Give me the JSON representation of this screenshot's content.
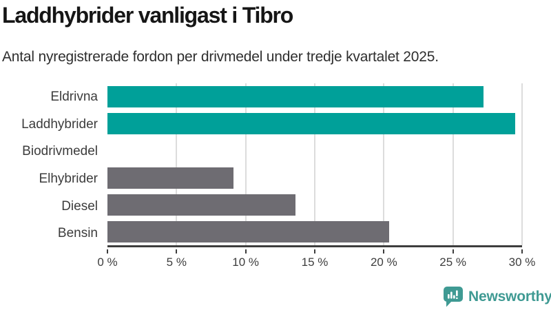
{
  "header": {
    "title": "Laddhybrider vanligast i Tibro",
    "subtitle": "Antal nyregistrerade fordon per drivmedel under tredje kvartalet 2025."
  },
  "chart_data": {
    "type": "bar",
    "orientation": "horizontal",
    "title": "Laddhybrider vanligast i Tibro",
    "subtitle": "Antal nyregistrerade fordon per drivmedel under tredje kvartalet 2025.",
    "categories": [
      "Eldrivna",
      "Laddhybrider",
      "Biodrivmedel",
      "Elhybrider",
      "Diesel",
      "Bensin"
    ],
    "values": [
      27.2,
      29.5,
      0,
      9.1,
      13.6,
      20.4
    ],
    "unit": "%",
    "xlim": [
      0,
      30
    ],
    "x_tick_values": [
      0,
      5,
      10,
      15,
      20,
      25,
      30
    ],
    "x_tick_labels": [
      "0 %",
      "5 %",
      "10 %",
      "15 %",
      "20 %",
      "25 %",
      "30 %"
    ],
    "bar_colors": [
      "#00a099",
      "#00a099",
      "#6e6c72",
      "#6e6c72",
      "#6e6c72",
      "#6e6c72"
    ],
    "grid": true,
    "legend": false
  },
  "colors": {
    "highlight_teal": "#00a099",
    "neutral_gray": "#6e6c72",
    "gridline": "#dcdcdc",
    "axis": "#3d3d3d",
    "title_text": "#161616",
    "subtitle_text": "#2e2e2e",
    "logo_teal": "#3f9a93"
  },
  "branding": {
    "logo_text": "Newsworthy",
    "logo_icon": "newsworthy-speech-bubble-bar-chart-icon"
  }
}
